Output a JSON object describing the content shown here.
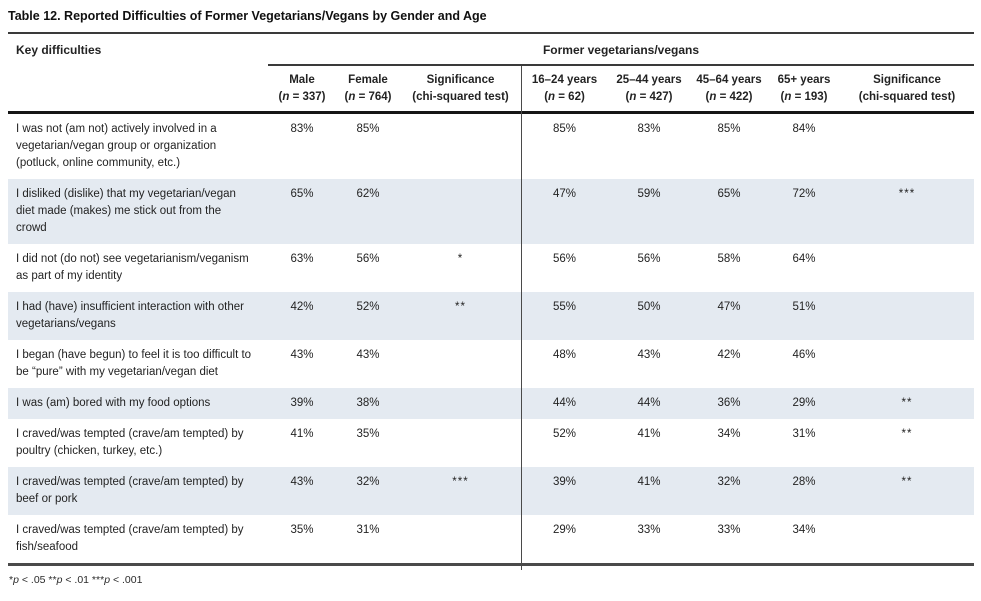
{
  "title": "Table 12. Reported Difficulties of Former Vegetarians/Vegans by Gender and Age",
  "table": {
    "key_column_header": "Key difficulties",
    "group_header": "Former vegetarians/vegans",
    "columns": [
      {
        "label": "Male",
        "n": "(n = 337)"
      },
      {
        "label": "Female",
        "n": "(n = 764)"
      },
      {
        "label": "Significance",
        "n": "(chi-squared test)"
      },
      {
        "label": "16–24 years",
        "n": "(n = 62)"
      },
      {
        "label": "25–44 years",
        "n": "(n = 427)"
      },
      {
        "label": "45–64 years",
        "n": "(n = 422)"
      },
      {
        "label": "65+ years",
        "n": "(n = 193)"
      },
      {
        "label": "Significance",
        "n": "(chi-squared test)"
      }
    ],
    "rows": [
      {
        "difficulty": "I was not (am not) actively involved in a vegetarian/vegan group or organization (potluck, online community, etc.)",
        "values": [
          "83%",
          "85%",
          "",
          "85%",
          "83%",
          "85%",
          "84%",
          ""
        ]
      },
      {
        "difficulty": "I disliked (dislike) that my vegetarian/vegan diet made (makes) me stick out from the crowd",
        "values": [
          "65%",
          "62%",
          "",
          "47%",
          "59%",
          "65%",
          "72%",
          "***"
        ]
      },
      {
        "difficulty": "I did not (do not) see vegetarianism/veganism as part of my identity",
        "values": [
          "63%",
          "56%",
          "*",
          "56%",
          "56%",
          "58%",
          "64%",
          ""
        ]
      },
      {
        "difficulty": "I had (have) insufficient interaction with other vegetarians/vegans",
        "values": [
          "42%",
          "52%",
          "**",
          "55%",
          "50%",
          "47%",
          "51%",
          ""
        ]
      },
      {
        "difficulty": "I began (have begun) to feel it is too difficult to be “pure” with my vegetarian/vegan diet",
        "values": [
          "43%",
          "43%",
          "",
          "48%",
          "43%",
          "42%",
          "46%",
          ""
        ]
      },
      {
        "difficulty": "I was (am) bored with my food options",
        "values": [
          "39%",
          "38%",
          "",
          "44%",
          "44%",
          "36%",
          "29%",
          "**"
        ]
      },
      {
        "difficulty": "I craved/was tempted (crave/am tempted) by poultry (chicken, turkey, etc.)",
        "values": [
          "41%",
          "35%",
          "",
          "52%",
          "41%",
          "34%",
          "31%",
          "**"
        ]
      },
      {
        "difficulty": "I craved/was tempted (crave/am tempted) by beef or pork",
        "values": [
          "43%",
          "32%",
          "***",
          "39%",
          "41%",
          "32%",
          "28%",
          "**"
        ]
      },
      {
        "difficulty": "I craved/was tempted (crave/am tempted) by fish/seafood",
        "values": [
          "35%",
          "31%",
          "",
          "29%",
          "33%",
          "33%",
          "34%",
          ""
        ]
      }
    ]
  },
  "footnote": "*p < .05 **p < .01 ***p < .001"
}
